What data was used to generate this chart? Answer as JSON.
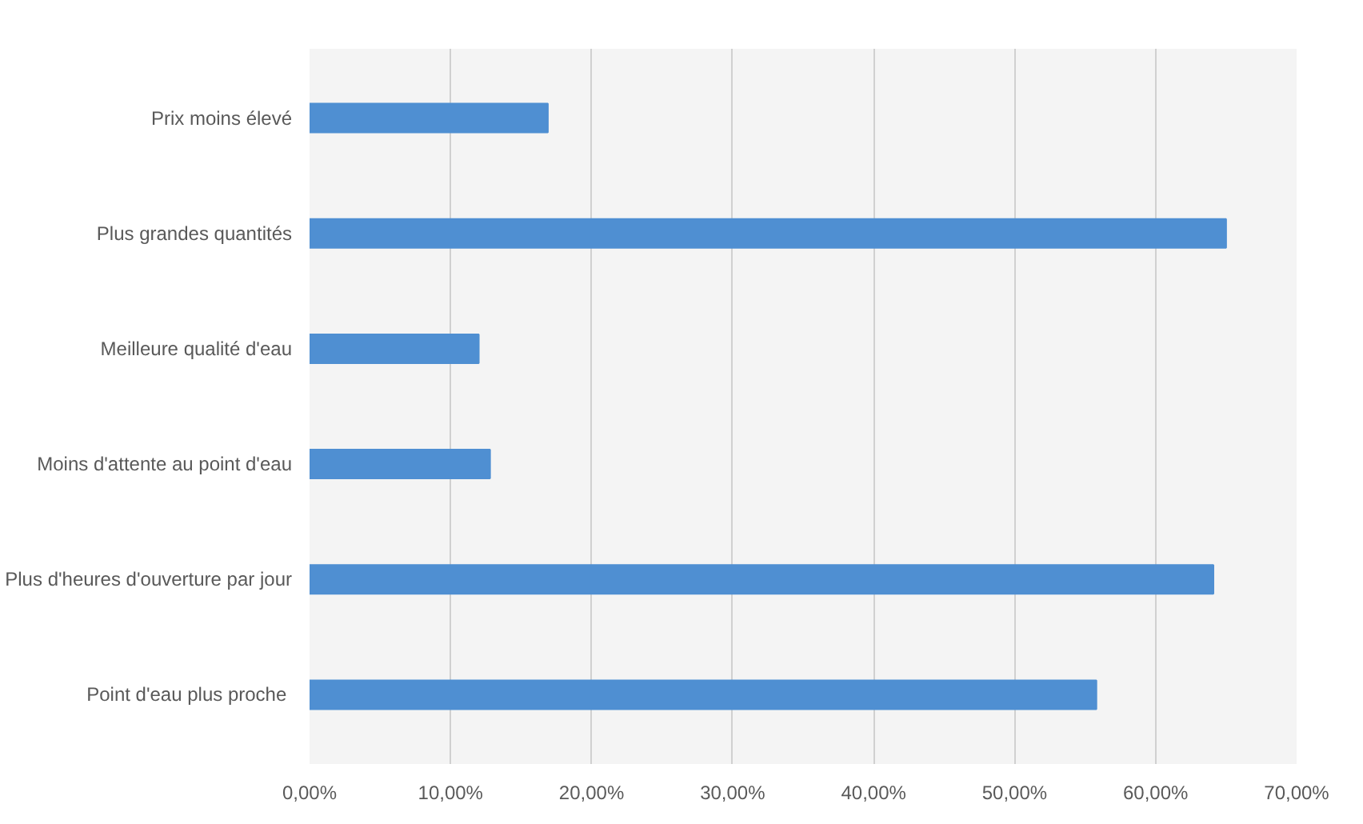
{
  "chart_data": {
    "type": "bar",
    "orientation": "horizontal",
    "categories": [
      "Prix moins élevé",
      "Plus grandes quantités",
      "Meilleure qualité d'eau",
      "Moins d'attente au point d'eau",
      "Plus d'heures d'ouverture par jour",
      "Point d'eau plus  proche"
    ],
    "values": [
      16.9,
      65.0,
      12.0,
      12.8,
      64.1,
      55.8
    ],
    "color": "#4f8fd2",
    "xlim": [
      0,
      70
    ],
    "xticks": [
      {
        "value": 0,
        "label": "0,00%"
      },
      {
        "value": 10,
        "label": "10,00%"
      },
      {
        "value": 20,
        "label": "20,00%"
      },
      {
        "value": 30,
        "label": "30,00%"
      },
      {
        "value": 40,
        "label": "40,00%"
      },
      {
        "value": 50,
        "label": "50,00%"
      },
      {
        "value": 60,
        "label": "60,00%"
      },
      {
        "value": 70,
        "label": "70,00%"
      }
    ],
    "grid": "x"
  }
}
